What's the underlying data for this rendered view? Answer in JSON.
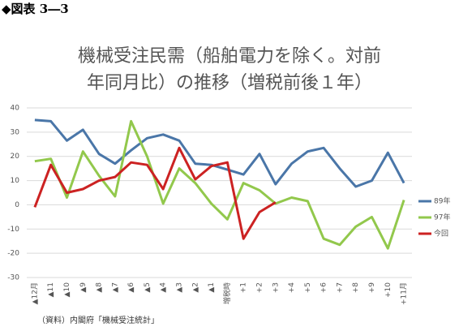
{
  "header": "◆図表 3―3",
  "chart_data": {
    "type": "line",
    "title": [
      "機械受注民需（船舶電力を除く。対前",
      "年同月比）の推移（増税前後１年）"
    ],
    "categories": [
      "▲12月",
      "▲11",
      "▲10",
      "▲9",
      "▲8",
      "▲7",
      "▲6",
      "▲5",
      "▲4",
      "▲3",
      "▲2",
      "▲1",
      "増税時",
      "+1",
      "+2",
      "+3",
      "+4",
      "+5",
      "+6",
      "+7",
      "+8",
      "+9",
      "+10",
      "+11月"
    ],
    "series": [
      {
        "name": "89年",
        "color": "#4a76a8",
        "values": [
          35,
          34.5,
          26.5,
          31,
          21,
          17,
          22.5,
          27.5,
          29,
          26.5,
          17,
          16.5,
          14.5,
          12.5,
          21,
          8.5,
          17,
          22,
          23.5,
          15,
          7.5,
          10,
          21.5,
          9
        ]
      },
      {
        "name": "97年",
        "color": "#92c84c",
        "values": [
          18,
          19,
          3,
          22,
          12,
          3.5,
          34.5,
          20,
          0.5,
          15,
          9,
          0.5,
          -6,
          9,
          6,
          0.5,
          3,
          1.5,
          -14,
          -16.5,
          -9,
          -5,
          -18,
          2
        ]
      },
      {
        "name": "今回",
        "color": "#cc2222",
        "values": [
          -1,
          16.5,
          5,
          6.5,
          10,
          11.5,
          17.5,
          16.5,
          6.5,
          23.5,
          10.5,
          16,
          17.5,
          -14,
          -3,
          1,
          null,
          null,
          null,
          null,
          null,
          null,
          null,
          null
        ]
      }
    ],
    "ylim": [
      -30,
      40
    ],
    "yticks": [
      -30,
      -20,
      -10,
      0,
      10,
      20,
      30,
      40
    ],
    "grid": true,
    "legend": "right",
    "source": "（資料）内閣府「機械受注統計」"
  }
}
